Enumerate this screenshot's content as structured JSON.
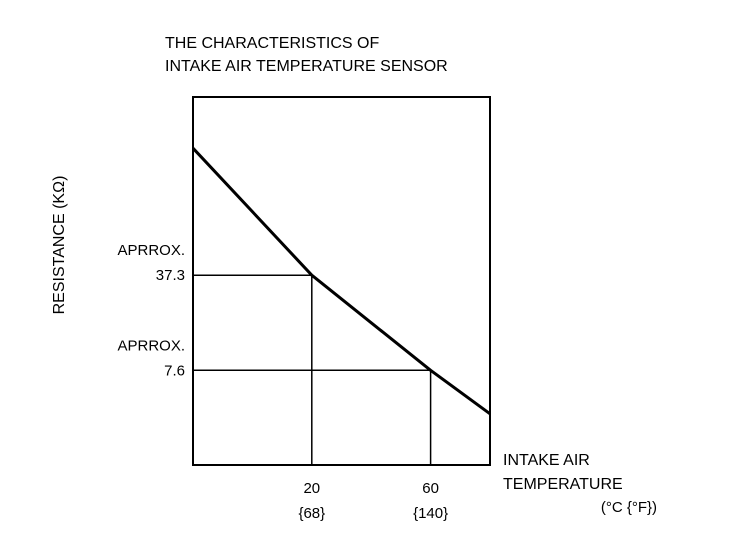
{
  "chart_data": {
    "type": "line",
    "title_lines": [
      "THE CHARACTERISTICS OF",
      "INTAKE AIR TEMPERATURE SENSOR"
    ],
    "ylabel": "RESISTANCE (KΩ)",
    "xlabel_lines": [
      "INTAKE AIR",
      "TEMPERATURE"
    ],
    "xlabel_units": "(°C {°F})",
    "x_ticks": [
      {
        "value": 20,
        "label": "20",
        "sublabel": "{68}"
      },
      {
        "value": 60,
        "label": "60",
        "sublabel": "{140}"
      }
    ],
    "y_ticks": [
      {
        "value": 37.3,
        "label_top": "APRROX.",
        "label_bottom": "37.3"
      },
      {
        "value": 7.6,
        "label_top": "APRROX.",
        "label_bottom": "7.6"
      }
    ],
    "grid": false,
    "series": [
      {
        "x": [
          -20,
          20,
          60,
          80
        ],
        "y": [
          77,
          37.3,
          7.6,
          -6
        ]
      }
    ],
    "xlim": [
      -20,
      80
    ],
    "ylim": [
      -22,
      93
    ]
  }
}
